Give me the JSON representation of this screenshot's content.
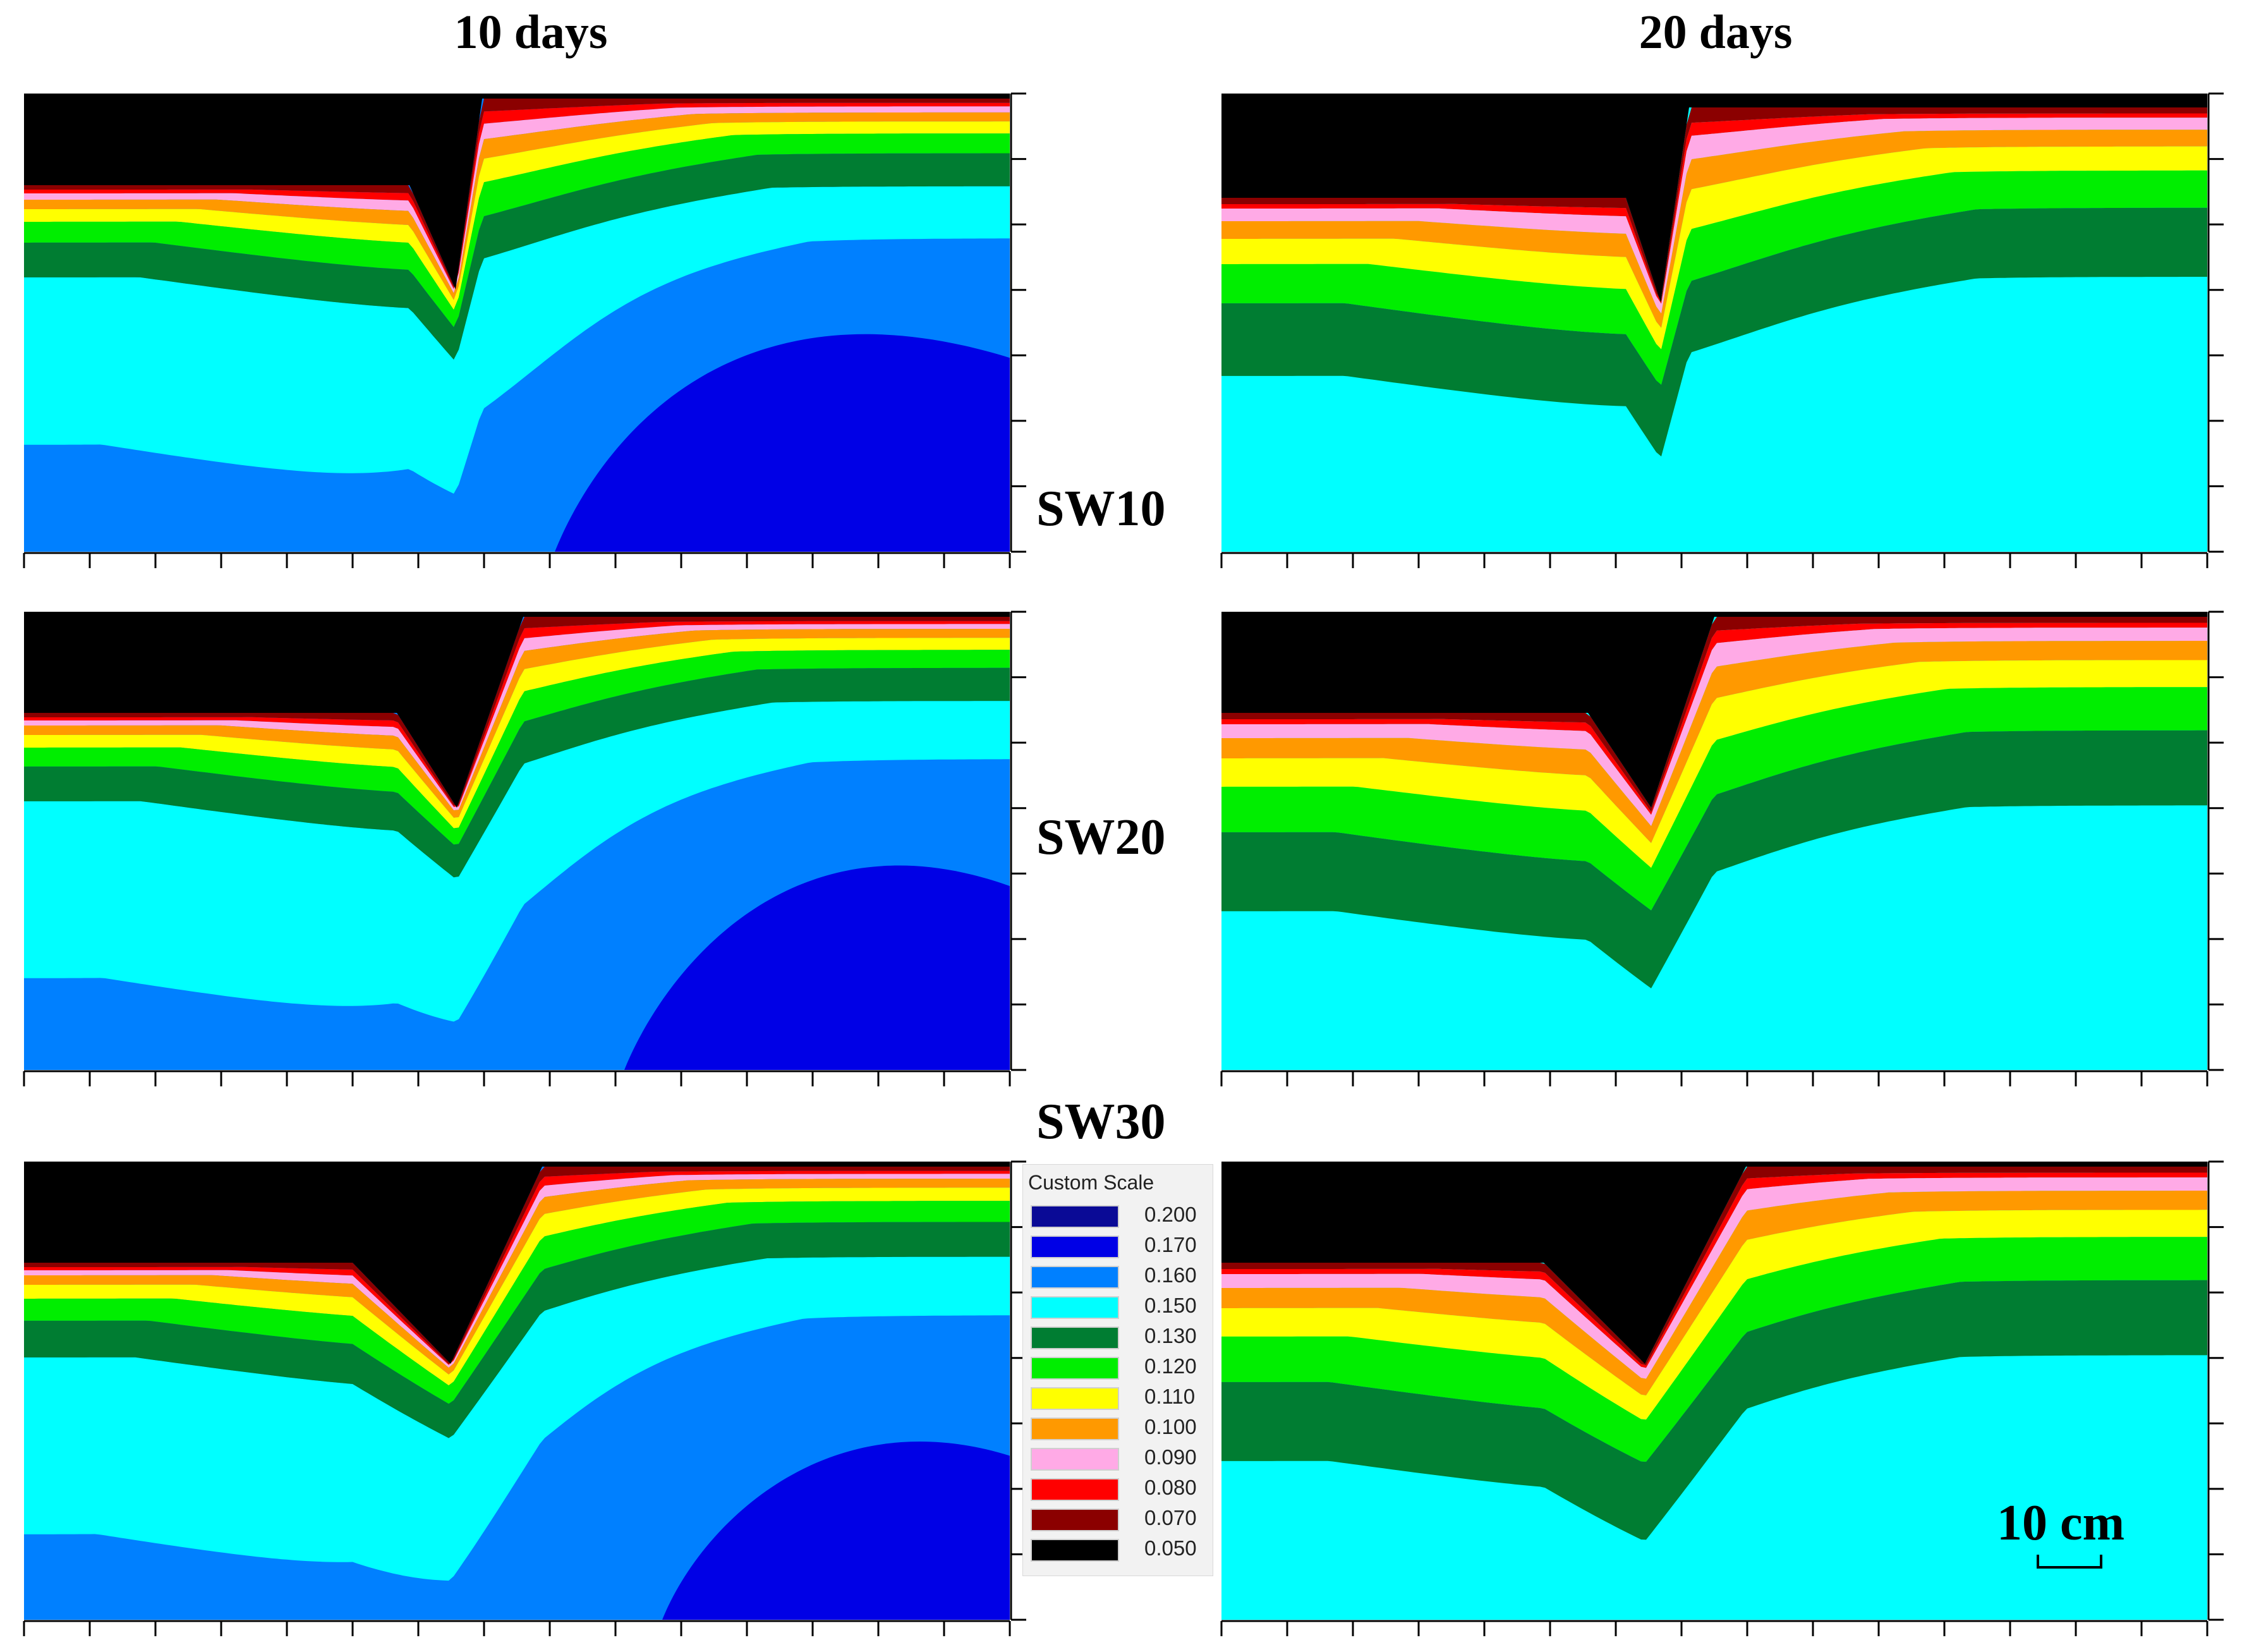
{
  "columns": [
    "10 days",
    "20 days"
  ],
  "rows": [
    "SW10",
    "SW20",
    "SW30"
  ],
  "legend": {
    "title": "Custom Scale",
    "items": [
      {
        "label": "0.200",
        "color": "#0a0a96"
      },
      {
        "label": "0.170",
        "color": "#0000e6"
      },
      {
        "label": "0.160",
        "color": "#0080ff"
      },
      {
        "label": "0.150",
        "color": "#00ffff"
      },
      {
        "label": "0.130",
        "color": "#007d32"
      },
      {
        "label": "0.120",
        "color": "#00ee00"
      },
      {
        "label": "0.110",
        "color": "#ffff00"
      },
      {
        "label": "0.100",
        "color": "#ff9900"
      },
      {
        "label": "0.090",
        "color": "#ffaae6"
      },
      {
        "label": "0.080",
        "color": "#ff0000"
      },
      {
        "label": "0.070",
        "color": "#8b0000"
      },
      {
        "label": "0.050",
        "color": "#000000"
      }
    ]
  },
  "scale_bar": {
    "label": "10 cm"
  },
  "panels": [
    {
      "id": "sw10-10d",
      "row": "SW10",
      "time": "10 days"
    },
    {
      "id": "sw10-20d",
      "row": "SW10",
      "time": "20 days"
    },
    {
      "id": "sw20-10d",
      "row": "SW20",
      "time": "10 days"
    },
    {
      "id": "sw20-20d",
      "row": "SW20",
      "time": "20 days"
    },
    {
      "id": "sw30-10d",
      "row": "SW30",
      "time": "10 days"
    },
    {
      "id": "sw30-20d",
      "row": "SW30",
      "time": "20 days"
    }
  ]
}
